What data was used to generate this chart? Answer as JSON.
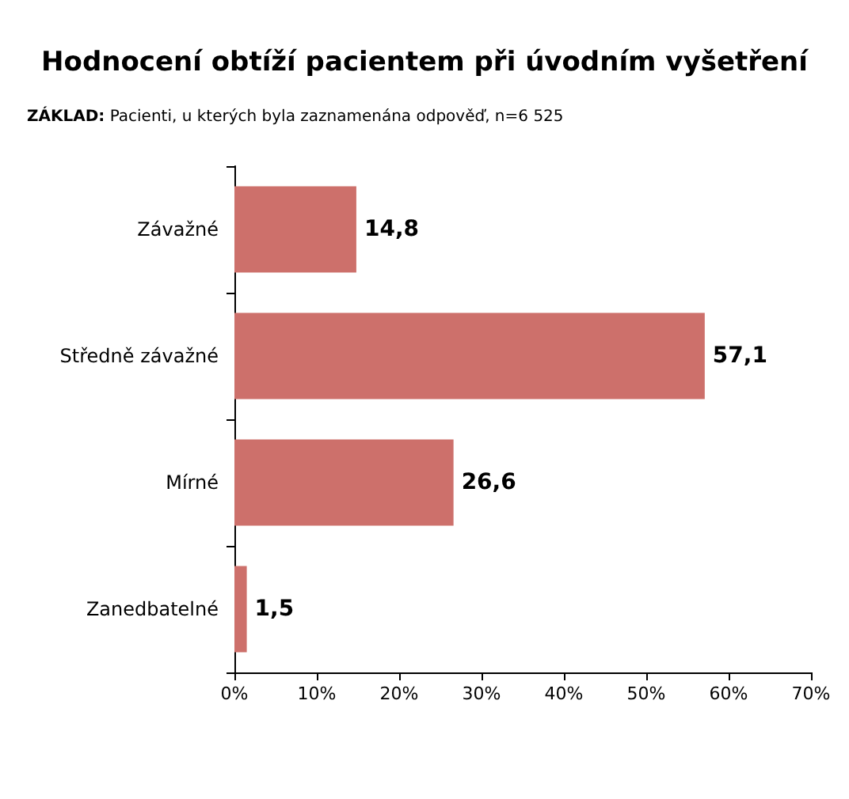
{
  "chart_data": {
    "type": "bar",
    "orientation": "horizontal",
    "title": "Hodnocení obtíží pacientem při úvodním vyšetření",
    "subtitle": "ZÁKLAD: Pacienti, u kterých byla zaznamenána odpověď, n=6 525",
    "categories": [
      "Závažné",
      "Středně závažné",
      "Mírné",
      "Zanedbatelné"
    ],
    "values": [
      14.8,
      57.1,
      26.6,
      1.5
    ],
    "value_labels": [
      "14,8",
      "57,1",
      "26,6",
      "1,5"
    ],
    "color": "#cd706b",
    "xlim": [
      0,
      70
    ],
    "xticks": [
      {
        "value": 0,
        "label": "0%"
      },
      {
        "value": 10,
        "label": "10%"
      },
      {
        "value": 20,
        "label": "20%"
      },
      {
        "value": 30,
        "label": "30%"
      },
      {
        "value": 40,
        "label": "40%"
      },
      {
        "value": 50,
        "label": "50%"
      },
      {
        "value": 60,
        "label": "60%"
      },
      {
        "value": 70,
        "label": "70%"
      }
    ],
    "grid": false
  }
}
